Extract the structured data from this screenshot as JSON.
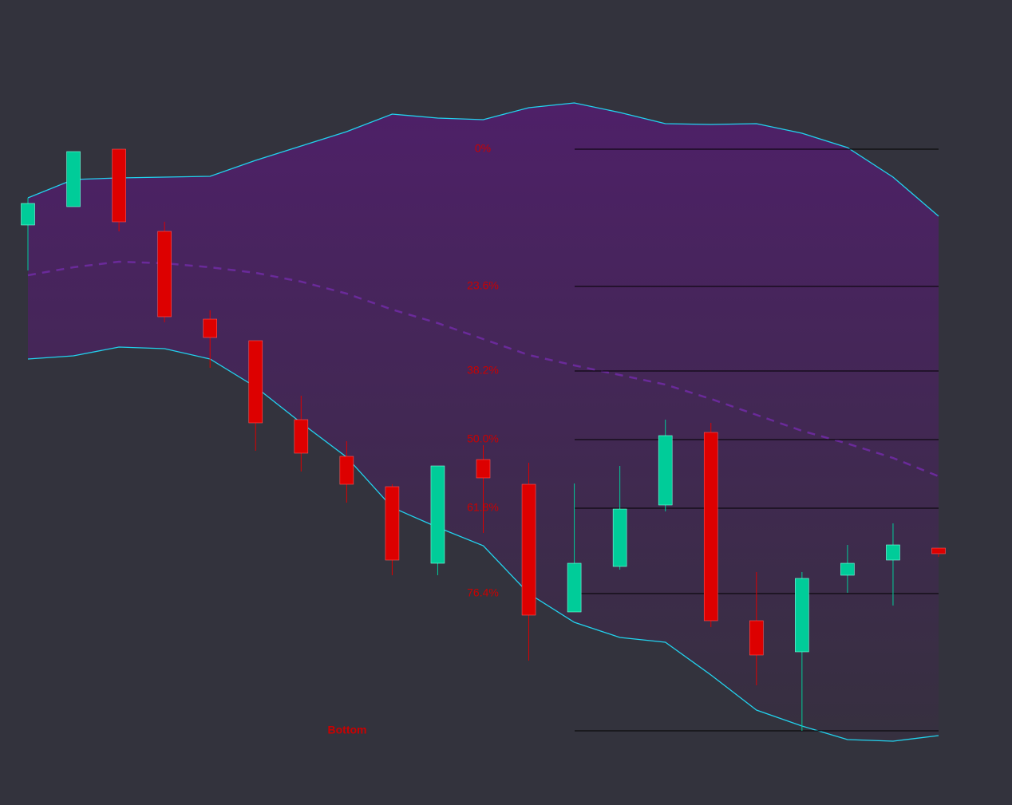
{
  "chart_data": {
    "type": "candlestick",
    "ylim": [
      0,
      1009
    ],
    "candles": {
      "open": [
        727,
        750,
        822,
        719,
        609,
        582,
        483,
        437,
        399,
        303,
        433,
        402,
        242,
        299,
        376,
        467,
        231,
        192,
        288,
        307,
        322
      ],
      "high": [
        761,
        819,
        822,
        731,
        620,
        582,
        513,
        456,
        402,
        425,
        451,
        429,
        403,
        425,
        483,
        479,
        292,
        292,
        326,
        353,
        322
      ],
      "low": [
        670,
        750,
        719,
        605,
        548,
        444,
        418,
        379,
        288,
        288,
        341,
        181,
        242,
        295,
        368,
        223,
        150,
        93,
        266,
        250,
        311
      ],
      "close": [
        754,
        819,
        731,
        612,
        586,
        479,
        441,
        402,
        307,
        425,
        410,
        238,
        303,
        371,
        463,
        231,
        188,
        284,
        303,
        326,
        315
      ]
    },
    "up_color": "#00cc99",
    "down_color": "#dd0000",
    "bands": {
      "color": "#22d3ee",
      "middle_color": "#6a2a9a",
      "upper": [
        761,
        784,
        786,
        787,
        788,
        808,
        826,
        844,
        866,
        861,
        859,
        874,
        880,
        868,
        854,
        853,
        854,
        842,
        824,
        787,
        738
      ],
      "middle": [
        664,
        674,
        681,
        679,
        674,
        667,
        656,
        641,
        621,
        604,
        584,
        564,
        551,
        539,
        527,
        509,
        489,
        469,
        453,
        435,
        412
      ],
      "lower": [
        559,
        563,
        574,
        572,
        559,
        524,
        479,
        436,
        373,
        348,
        325,
        265,
        229,
        210,
        204,
        163,
        119,
        99,
        82,
        80,
        87
      ]
    },
    "fib_color": "#cc0000",
    "fib_levels": [
      {
        "value": 822,
        "label": "0%"
      },
      {
        "value": 650,
        "label": "23.6%"
      },
      {
        "value": 544,
        "label": "38.2%"
      },
      {
        "value": 458,
        "label": "50.0%"
      },
      {
        "value": 372,
        "label": "61.8%"
      },
      {
        "value": 265,
        "label": "76.4%"
      },
      {
        "value": 93,
        "label": "Bottom"
      }
    ]
  }
}
